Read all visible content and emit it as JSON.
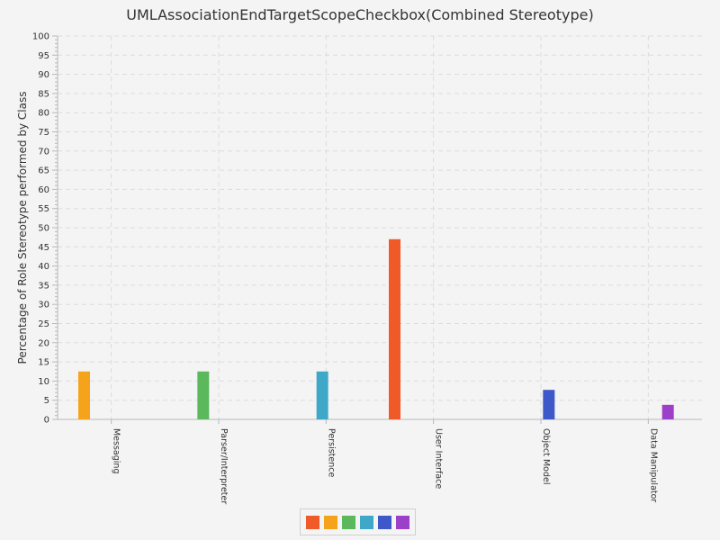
{
  "chart_data": {
    "type": "bar",
    "title": "UMLAssociationEndTargetScopeCheckbox(Combined Stereotype)",
    "ylabel": "Percentage of Role Stereotype performed by Class",
    "xlabel": "",
    "ylim": [
      0,
      100
    ],
    "ytick_step": 5,
    "grid": true,
    "legend_placement": "bottom-center",
    "categories": [
      "Messaging",
      "Parser/Interpreter",
      "Persistence",
      "User Interface",
      "Object Model",
      "Data Manipulator"
    ],
    "series": [
      {
        "color": "#f05a28",
        "values": [
          0,
          0,
          0,
          47,
          0,
          0
        ]
      },
      {
        "color": "#f5a31a",
        "values": [
          12.5,
          0,
          0,
          0,
          0,
          0
        ]
      },
      {
        "color": "#5cb85c",
        "values": [
          0,
          12.5,
          0,
          0,
          0,
          0
        ]
      },
      {
        "color": "#3fa8c9",
        "values": [
          0,
          0,
          12.5,
          0,
          0,
          0
        ]
      },
      {
        "color": "#3f58c9",
        "values": [
          0,
          0,
          0,
          0,
          7.7,
          0
        ]
      },
      {
        "color": "#9c3fc9",
        "values": [
          0,
          0,
          0,
          0,
          0,
          3.8
        ]
      }
    ]
  }
}
